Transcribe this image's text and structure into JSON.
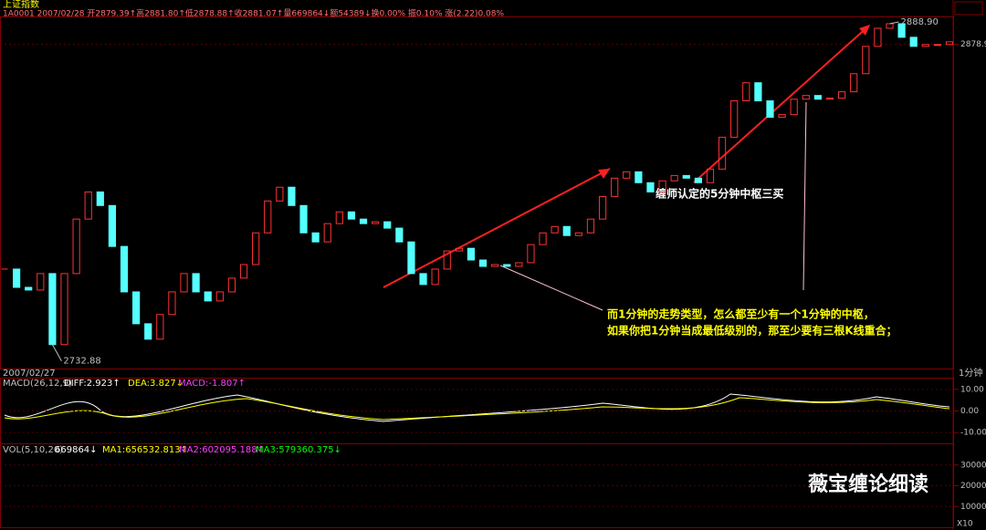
{
  "header": {
    "title": "上证指数",
    "quote": "1A0001 2007/02/28 开2879.39↑高2881.80↑低2878.88↑收2881.07↑量669864↓额54389↓换0.00% 振0.10% 涨(2.22)0.08%"
  },
  "chart_data": [
    {
      "type": "candlestick",
      "date_label": "2007/02/27",
      "period_label": "1分钟",
      "values": [
        2769.6,
        2760.7,
        2759.4,
        2767.4,
        2732.88,
        2767.4,
        2793.9,
        2807.1,
        2800.5,
        2780.6,
        2758.5,
        2743.0,
        2735.5,
        2747.5,
        2758.5,
        2767.4,
        2758.5,
        2754.1,
        2758.5,
        2765.2,
        2771.8,
        2787.2,
        2802.7,
        2809.4,
        2800.5,
        2787.2,
        2782.8,
        2791.7,
        2797.4,
        2793.9,
        2791.7,
        2792.6,
        2789.5,
        2782.8,
        2767.4,
        2762.1,
        2769.6,
        2778.4,
        2779.7,
        2774.0,
        2770.9,
        2771.8,
        2770.9,
        2772.7,
        2781.5,
        2787.2,
        2790.3,
        2785.9,
        2787.2,
        2793.9,
        2804.9,
        2813.8,
        2816.9,
        2811.6,
        2807.1,
        2812.5,
        2815.1,
        2813.8,
        2811.6,
        2818.2,
        2833.7,
        2851.4,
        2860.2,
        2851.4,
        2843.4,
        2844.7,
        2852.2,
        2854.0,
        2852.2,
        2852.7,
        2855.8,
        2864.6,
        2877.9,
        2886.7,
        2888.9,
        2882.3,
        2877.9,
        2878.8,
        2878.8,
        2880.1
      ],
      "value_labels": {
        "4": "2732.88",
        "74": "2888.90"
      },
      "ylim": [
        2723,
        2896
      ],
      "yticks": [
        2878.9
      ],
      "up_color": "#ff3232",
      "down_color": "#54ffff",
      "annotations": [
        "缠师认定的5分钟中枢三买",
        "而1分钟的走势类型，怎么都至少有一个1分钟的中枢，",
        "如果你把1分钟当成最低级别的，那至少要有三根K线重合；"
      ]
    },
    {
      "type": "macd",
      "title": "MACD(26,12,9)",
      "legend": [
        "DIFF:2.923↑",
        "DEA:3.827↓",
        "MACD:-1.807↑"
      ],
      "ylim": [
        -15,
        15
      ],
      "yticks": [
        {
          "value": 10,
          "label": "10.00"
        },
        {
          "value": 0,
          "label": "0.00"
        },
        {
          "value": -10,
          "label": "-10.00"
        }
      ]
    },
    {
      "type": "volume",
      "title": "VOL(5,10,20)",
      "legend": [
        "669864↓",
        "MA1:656532.813↑",
        "MA2:602095.188↑",
        "MA3:579360.375↓"
      ],
      "ylim": [
        0,
        400000
      ],
      "yticks": [
        300000,
        200000,
        100000
      ],
      "unit_label": "X10"
    }
  ],
  "watermark": "薇宝缠论细读"
}
